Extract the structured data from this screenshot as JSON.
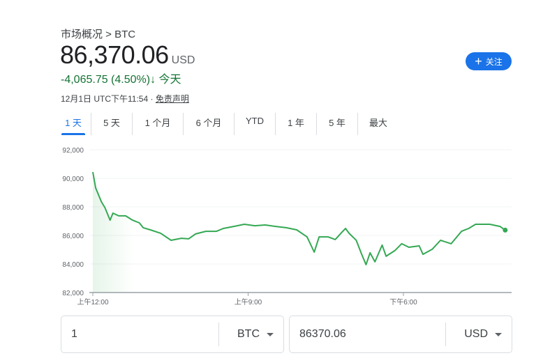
{
  "breadcrumb": "市场概况 > BTC",
  "price": {
    "value": "86,370.06",
    "currency": "USD"
  },
  "change": {
    "text": "-4,065.75 (4.50%)",
    "arrow": "↓",
    "period": "今天",
    "color": "#137333"
  },
  "meta": {
    "timestamp": "12月1日 UTC下午11:54 · ",
    "disclaimer": "免责声明"
  },
  "follow_button": {
    "icon": "plus-icon",
    "label": "关注",
    "color": "#1a73e8"
  },
  "tabs": [
    {
      "label": "1 天",
      "active": true
    },
    {
      "label": "5 天"
    },
    {
      "label": "1 个月"
    },
    {
      "label": "6 个月"
    },
    {
      "label": "YTD"
    },
    {
      "label": "1 年"
    },
    {
      "label": "5 年"
    },
    {
      "label": "最大"
    }
  ],
  "converter": {
    "from_value": "1",
    "from_currency": "BTC",
    "to_value": "86370.06",
    "to_currency": "USD"
  },
  "chart_data": {
    "type": "line",
    "line_color": "#34a853",
    "grid": true,
    "ylim": [
      82000,
      92000
    ],
    "y_ticks": [
      "92,000",
      "90,000",
      "88,000",
      "86,000",
      "84,000",
      "82,000"
    ],
    "x_ticks": [
      {
        "label": "上午12:00",
        "t": "00:00"
      },
      {
        "label": "上午9:00",
        "t": "09:00"
      },
      {
        "label": "下午6:00",
        "t": "18:00"
      }
    ],
    "points": [
      [
        "00:00",
        90440
      ],
      [
        "00:10",
        89320
      ],
      [
        "00:30",
        88340
      ],
      [
        "00:42",
        87950
      ],
      [
        "01:00",
        87070
      ],
      [
        "01:10",
        87560
      ],
      [
        "01:30",
        87370
      ],
      [
        "01:54",
        87370
      ],
      [
        "02:18",
        87070
      ],
      [
        "02:42",
        86880
      ],
      [
        "02:55",
        86540
      ],
      [
        "03:20",
        86390
      ],
      [
        "03:56",
        86150
      ],
      [
        "04:32",
        85660
      ],
      [
        "05:08",
        85800
      ],
      [
        "05:33",
        85760
      ],
      [
        "05:57",
        86100
      ],
      [
        "06:33",
        86290
      ],
      [
        "07:10",
        86290
      ],
      [
        "07:34",
        86490
      ],
      [
        "08:10",
        86630
      ],
      [
        "08:47",
        86780
      ],
      [
        "09:23",
        86680
      ],
      [
        "09:59",
        86730
      ],
      [
        "10:36",
        86630
      ],
      [
        "11:12",
        86540
      ],
      [
        "11:49",
        86390
      ],
      [
        "12:25",
        85900
      ],
      [
        "12:50",
        84830
      ],
      [
        "13:07",
        85900
      ],
      [
        "13:38",
        85900
      ],
      [
        "14:03",
        85710
      ],
      [
        "14:27",
        86240
      ],
      [
        "14:39",
        86490
      ],
      [
        "14:51",
        86150
      ],
      [
        "15:16",
        85660
      ],
      [
        "15:35",
        84680
      ],
      [
        "15:50",
        83950
      ],
      [
        "16:04",
        84780
      ],
      [
        "16:21",
        84150
      ],
      [
        "16:46",
        85320
      ],
      [
        "17:00",
        84540
      ],
      [
        "17:30",
        84930
      ],
      [
        "17:54",
        85420
      ],
      [
        "18:19",
        85170
      ],
      [
        "18:55",
        85270
      ],
      [
        "19:08",
        84680
      ],
      [
        "19:40",
        85030
      ],
      [
        "20:09",
        85660
      ],
      [
        "20:46",
        85420
      ],
      [
        "21:22",
        86290
      ],
      [
        "21:47",
        86490
      ],
      [
        "22:11",
        86780
      ],
      [
        "23:00",
        86780
      ],
      [
        "23:36",
        86630
      ],
      [
        "23:54",
        86370.06
      ]
    ]
  }
}
